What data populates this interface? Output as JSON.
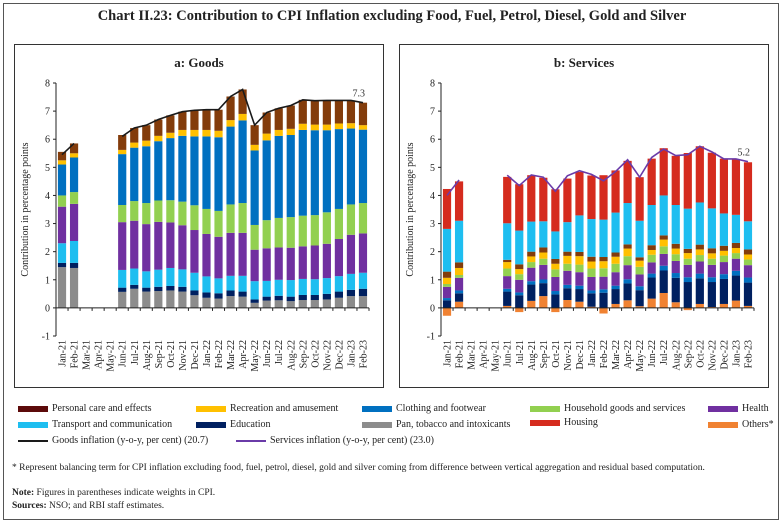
{
  "title": "Chart II.23: Contribution to CPI Inflation excluding Food, Fuel, Petrol, Diesel, Gold and Silver",
  "colors": {
    "personal_care": "#833C0B",
    "recreation": "#FFC000",
    "clothing": "#0070C0",
    "household": "#92D050",
    "health": "#7030A0",
    "transport": "#1EBEF0",
    "education": "#002060",
    "pan": "#8C8C8C",
    "housing": "#D52B1E",
    "others": "#F08232",
    "goods_line": "#1a1a1a",
    "services_line": "#6A3BA8"
  },
  "legend": {
    "personal_care": "Personal care and effects",
    "recreation": "Recreation and amusement",
    "clothing": "Clothing and footwear",
    "household": "Household goods and services",
    "health": "Health",
    "transport": "Transport and communication",
    "education": "Education",
    "pan": "Pan, tobacco and intoxicants",
    "housing": "Housing",
    "others": "Others*",
    "goods_line": "Goods inflation (y-o-y, per cent) (20.7)",
    "services_line": "Services inflation (y-o-y, per cent) (23.0)"
  },
  "footnotes": {
    "star": "* Represent balancing term for CPI inflation excluding food, fuel, petrol, diesel, gold and silver coming from difference between vertical aggregation and residual based computation.",
    "note_label": "Note:",
    "note": " Figures in parentheses indicate weights in CPI.",
    "sources_label": "Sources:",
    "sources": " NSO; and RBI staff estimates."
  },
  "chart_data": [
    {
      "type": "bar",
      "stacked": true,
      "title": "a: Goods",
      "ylabel": "Contribution in percentage points",
      "ylim": [
        -1,
        8
      ],
      "yticks": [
        "-1",
        "0",
        "1",
        "2",
        "3",
        "4",
        "5",
        "6",
        "7",
        "8"
      ],
      "categories": [
        "Jan-21",
        "Feb-21",
        "Mar-21",
        "Apr-21",
        "May-21",
        "Jun-21",
        "Jul-21",
        "Aug-21",
        "Sep-21",
        "Oct-21",
        "Nov-21",
        "Dec-21",
        "Jan-22",
        "Feb-22",
        "Mar-22",
        "Apr-22",
        "May-22",
        "Jun-22",
        "Jul-22",
        "Aug-22",
        "Sep-22",
        "Oct-22",
        "Nov-22",
        "Dec-22",
        "Jan-23",
        "Feb-23"
      ],
      "series": [
        {
          "key": "pan",
          "values": [
            1.45,
            1.42,
            null,
            null,
            null,
            0.57,
            0.68,
            0.58,
            0.6,
            0.62,
            0.58,
            0.45,
            0.36,
            0.33,
            0.42,
            0.4,
            0.18,
            0.26,
            0.27,
            0.24,
            0.28,
            0.28,
            0.3,
            0.36,
            0.42,
            0.42
          ]
        },
        {
          "key": "education",
          "values": [
            0.15,
            0.18,
            null,
            null,
            null,
            0.15,
            0.14,
            0.14,
            0.15,
            0.16,
            0.17,
            0.17,
            0.19,
            0.19,
            0.2,
            0.18,
            0.12,
            0.14,
            0.16,
            0.16,
            0.18,
            0.18,
            0.2,
            0.22,
            0.22,
            0.26
          ]
        },
        {
          "key": "transport",
          "values": [
            0.7,
            0.78,
            null,
            null,
            null,
            0.63,
            0.58,
            0.58,
            0.61,
            0.64,
            0.62,
            0.63,
            0.57,
            0.53,
            0.52,
            0.56,
            0.65,
            0.56,
            0.57,
            0.59,
            0.57,
            0.56,
            0.56,
            0.55,
            0.57,
            0.57
          ]
        },
        {
          "key": "health",
          "values": [
            1.3,
            1.32,
            null,
            null,
            null,
            1.7,
            1.7,
            1.68,
            1.7,
            1.62,
            1.57,
            1.52,
            1.51,
            1.48,
            1.53,
            1.53,
            1.12,
            1.16,
            1.15,
            1.15,
            1.16,
            1.2,
            1.22,
            1.32,
            1.39,
            1.4
          ]
        },
        {
          "key": "household",
          "values": [
            0.4,
            0.42,
            null,
            null,
            null,
            0.61,
            0.7,
            0.75,
            0.76,
            0.79,
            0.84,
            0.88,
            0.89,
            0.92,
            1.01,
            1.06,
            0.88,
            1.0,
            1.05,
            1.09,
            1.09,
            1.08,
            1.12,
            1.07,
            1.08,
            1.08
          ]
        },
        {
          "key": "clothing",
          "values": [
            1.1,
            1.23,
            null,
            null,
            null,
            1.81,
            1.9,
            2.02,
            2.11,
            2.21,
            2.34,
            2.45,
            2.58,
            2.62,
            2.77,
            2.94,
            2.65,
            2.84,
            2.92,
            2.92,
            3.05,
            3.02,
            2.92,
            2.84,
            2.7,
            2.61
          ]
        },
        {
          "key": "recreation",
          "values": [
            0.15,
            0.15,
            null,
            null,
            null,
            0.15,
            0.18,
            0.2,
            0.19,
            0.19,
            0.21,
            0.23,
            0.23,
            0.23,
            0.23,
            0.23,
            0.2,
            0.24,
            0.21,
            0.22,
            0.22,
            0.2,
            0.2,
            0.2,
            0.19,
            0.16
          ]
        },
        {
          "key": "personal_care",
          "values": [
            0.3,
            0.35,
            null,
            null,
            null,
            0.53,
            0.52,
            0.55,
            0.58,
            0.62,
            0.65,
            0.7,
            0.72,
            0.75,
            0.84,
            0.87,
            0.7,
            0.75,
            0.77,
            0.83,
            0.85,
            0.85,
            0.86,
            0.82,
            0.81,
            0.8
          ]
        }
      ],
      "line": {
        "key": "goods_line",
        "values": [
          5.45,
          5.85,
          null,
          null,
          null,
          6.1,
          6.4,
          6.5,
          6.7,
          6.85,
          6.98,
          7.03,
          7.05,
          7.05,
          7.52,
          7.77,
          6.5,
          6.95,
          7.1,
          7.2,
          7.4,
          7.37,
          7.38,
          7.38,
          7.38,
          7.3
        ]
      },
      "annotation": "7.3"
    },
    {
      "type": "bar",
      "stacked": true,
      "title": "b: Services",
      "ylabel": "Contribution in percentage points",
      "ylim": [
        -1,
        8
      ],
      "yticks": [
        "-1",
        "0",
        "1",
        "2",
        "3",
        "4",
        "5",
        "6",
        "7",
        "8"
      ],
      "categories": [
        "Jan-21",
        "Feb-21",
        "Mar-21",
        "Apr-21",
        "May-21",
        "Jun-21",
        "Jul-21",
        "Aug-21",
        "Sep-21",
        "Oct-21",
        "Nov-21",
        "Dec-21",
        "Jan-22",
        "Feb-22",
        "Mar-22",
        "Apr-22",
        "May-22",
        "Jun-22",
        "Jul-22",
        "Aug-22",
        "Sep-22",
        "Oct-22",
        "Nov-22",
        "Dec-22",
        "Jan-23",
        "Feb-23"
      ],
      "series": [
        {
          "key": "others",
          "values": [
            -0.28,
            0.22,
            null,
            null,
            null,
            0.07,
            -0.15,
            0.25,
            0.42,
            -0.15,
            0.28,
            0.22,
            0.04,
            -0.2,
            0.14,
            0.27,
            0.06,
            0.33,
            0.53,
            0.2,
            -0.08,
            0.14,
            0.03,
            0.14,
            0.26,
            0.07
          ]
        },
        {
          "key": "education",
          "values": [
            0.27,
            0.3,
            null,
            null,
            null,
            0.51,
            0.45,
            0.58,
            0.46,
            0.48,
            0.42,
            0.45,
            0.48,
            0.54,
            0.53,
            0.6,
            0.57,
            0.75,
            0.8,
            0.87,
            0.92,
            0.91,
            0.89,
            0.89,
            0.89,
            0.83
          ]
        },
        {
          "key": "clothing",
          "values": [
            0.08,
            0.1,
            null,
            null,
            null,
            0.1,
            0.1,
            0.12,
            0.13,
            0.12,
            0.12,
            0.12,
            0.1,
            0.12,
            0.12,
            0.15,
            0.14,
            0.14,
            0.17,
            0.17,
            0.17,
            0.17,
            0.17,
            0.17,
            0.17,
            0.18
          ]
        },
        {
          "key": "health",
          "values": [
            0.4,
            0.45,
            null,
            null,
            null,
            0.45,
            0.45,
            0.48,
            0.52,
            0.5,
            0.5,
            0.48,
            0.48,
            0.45,
            0.48,
            0.5,
            0.42,
            0.4,
            0.42,
            0.43,
            0.44,
            0.43,
            0.44,
            0.43,
            0.43,
            0.44
          ]
        },
        {
          "key": "household",
          "values": [
            0.1,
            0.1,
            null,
            null,
            null,
            0.27,
            0.2,
            0.2,
            0.22,
            0.27,
            0.25,
            0.27,
            0.3,
            0.3,
            0.3,
            0.32,
            0.27,
            0.27,
            0.27,
            0.24,
            0.22,
            0.23,
            0.22,
            0.23,
            0.2,
            0.2
          ]
        },
        {
          "key": "recreation",
          "values": [
            0.22,
            0.25,
            null,
            null,
            null,
            0.23,
            0.18,
            0.2,
            0.22,
            0.2,
            0.28,
            0.3,
            0.25,
            0.25,
            0.25,
            0.27,
            0.22,
            0.17,
            0.24,
            0.2,
            0.2,
            0.2,
            0.19,
            0.17,
            0.18,
            0.18
          ]
        },
        {
          "key": "personal_care",
          "values": [
            0.22,
            0.2,
            null,
            null,
            null,
            0.08,
            0.17,
            0.17,
            0.18,
            0.17,
            0.15,
            0.15,
            0.17,
            0.15,
            0.15,
            0.15,
            0.12,
            0.17,
            0.15,
            0.17,
            0.15,
            0.17,
            0.18,
            0.18,
            0.18,
            0.18
          ]
        },
        {
          "key": "transport",
          "values": [
            1.52,
            1.48,
            null,
            null,
            null,
            1.3,
            1.2,
            1.07,
            0.93,
            0.98,
            1.05,
            1.3,
            1.34,
            1.33,
            1.42,
            1.47,
            1.3,
            1.43,
            1.42,
            1.38,
            1.43,
            1.5,
            1.42,
            1.15,
            1.0,
            1.0
          ]
        },
        {
          "key": "housing",
          "values": [
            1.42,
            1.4,
            null,
            null,
            null,
            1.65,
            1.65,
            1.65,
            1.55,
            1.5,
            1.55,
            1.55,
            1.55,
            1.58,
            1.5,
            1.5,
            1.55,
            1.65,
            1.68,
            1.75,
            1.98,
            2.0,
            1.98,
            1.95,
            1.97,
            2.1
          ]
        }
      ],
      "line": {
        "key": "services_line",
        "values": [
          4.0,
          4.55,
          null,
          null,
          null,
          4.72,
          4.35,
          4.73,
          4.65,
          4.15,
          4.7,
          4.88,
          4.75,
          4.52,
          4.85,
          5.27,
          4.65,
          5.35,
          5.65,
          5.42,
          5.45,
          5.75,
          5.55,
          5.3,
          5.3,
          5.2
        ]
      },
      "annotation": "5.2"
    }
  ]
}
